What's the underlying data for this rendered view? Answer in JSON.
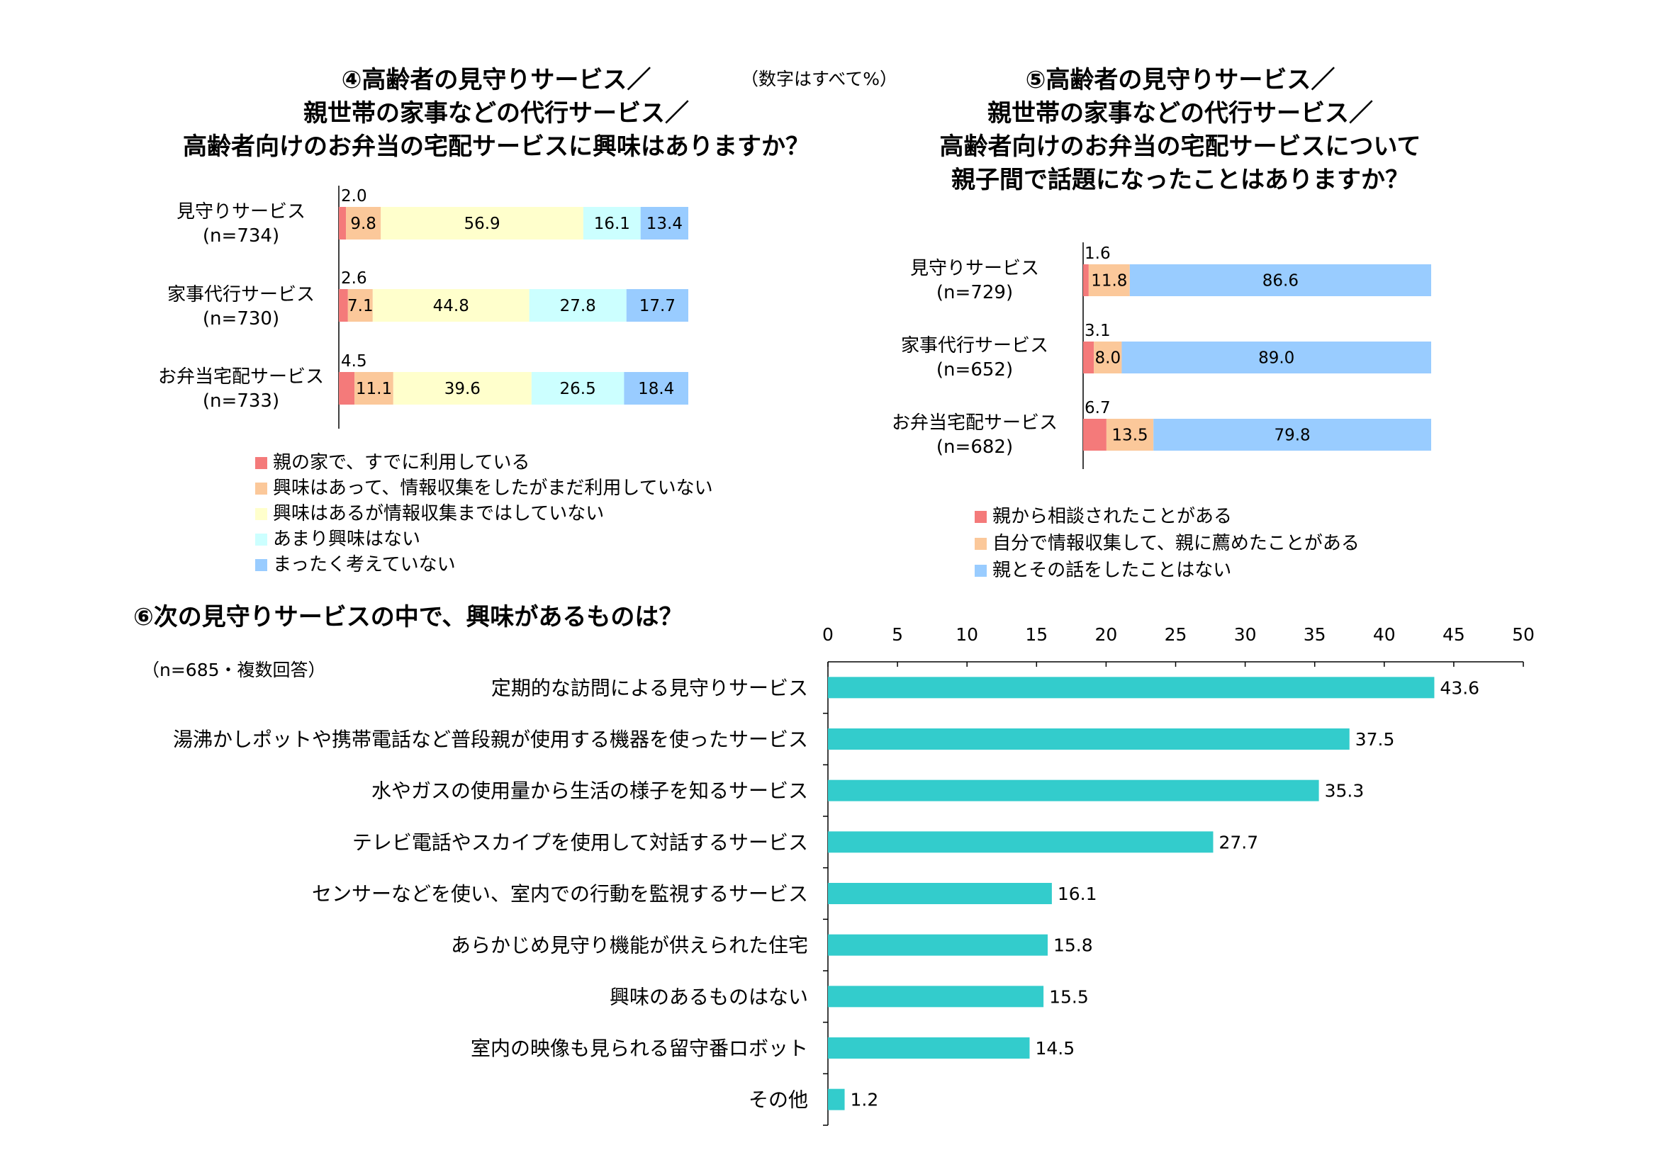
{
  "chart4": {
    "title_lines": [
      "④高齢者の見守りサービス／",
      "親世帯の家事などの代行サービス／",
      "高齢者向けのお弁当の宅配サービスに興味はありますか？"
    ],
    "unit_note": "（数字はすべて%）",
    "rows": [
      {
        "label": "見守りサービス",
        "n": "(n=734)"
      },
      {
        "label": "家事代行サービス",
        "n": "(n=730)"
      },
      {
        "label": "お弁当宅配サービス",
        "n": "(n=733)"
      }
    ],
    "legend": [
      "親の家で、すでに利用している",
      "興味はあって、情報収集をしたがまだ利用していない",
      "興味はあるが情報収集まではしていない",
      "あまり興味はない",
      "まったく考えていない"
    ]
  },
  "chart5": {
    "title_lines": [
      "⑤高齢者の見守りサービス／",
      "親世帯の家事などの代行サービス／",
      "高齢者向けのお弁当の宅配サービスについて",
      "親子間で話題になったことはありますか？"
    ],
    "rows": [
      {
        "label": "見守りサービス",
        "n": "(n=729)"
      },
      {
        "label": "家事代行サービス",
        "n": "(n=652)"
      },
      {
        "label": "お弁当宅配サービス",
        "n": "(n=682)"
      }
    ],
    "legend": [
      "親から相談されたことがある",
      "自分で情報収集して、親に薦めたことがある",
      "親とその話をしたことはない"
    ]
  },
  "chart6": {
    "title": "⑥次の見守りサービスの中で、興味があるものは？",
    "note": "（n=685・複数回答）"
  },
  "colors": {
    "c1": "#f47a7a",
    "c2": "#fbc89a",
    "c3": "#ffffcc",
    "c4": "#ccffff",
    "c5": "#99ccff",
    "teal": "#33cccc"
  },
  "chart_data": [
    {
      "type": "bar",
      "orientation": "horizontal-stacked",
      "categories": [
        "見守りサービス",
        "家事代行サービス",
        "お弁当宅配サービス"
      ],
      "series": [
        {
          "name": "親の家で、すでに利用している",
          "values": [
            2.0,
            2.6,
            4.5
          ]
        },
        {
          "name": "興味はあって、情報収集をしたがまだ利用していない",
          "values": [
            9.8,
            7.1,
            11.1
          ]
        },
        {
          "name": "興味はあるが情報収集まではしていない",
          "values": [
            56.9,
            44.8,
            39.6
          ]
        },
        {
          "name": "あまり興味はない",
          "values": [
            16.1,
            27.8,
            26.5
          ]
        },
        {
          "name": "まったく考えていない",
          "values": [
            13.4,
            17.7,
            18.4
          ]
        }
      ],
      "legend": "bottom"
    },
    {
      "type": "bar",
      "orientation": "horizontal-stacked",
      "categories": [
        "見守りサービス",
        "家事代行サービス",
        "お弁当宅配サービス"
      ],
      "series": [
        {
          "name": "親から相談されたことがある",
          "values": [
            1.6,
            3.1,
            6.7
          ]
        },
        {
          "name": "自分で情報収集して、親に薦めたことがある",
          "values": [
            11.8,
            8.0,
            13.5
          ]
        },
        {
          "name": "親とその話をしたことはない",
          "values": [
            86.6,
            89.0,
            79.8
          ]
        }
      ],
      "legend": "bottom"
    },
    {
      "type": "bar",
      "orientation": "horizontal",
      "categories": [
        "定期的な訪問による見守りサービス",
        "湯沸かしポットや携帯電話など普段親が使用する機器を使ったサービス",
        "水やガスの使用量から生活の様子を知るサービス",
        "テレビ電話やスカイプを使用して対話するサービス",
        "センサーなどを使い、室内での行動を監視するサービス",
        "あらかじめ見守り機能が供えられた住宅",
        "興味のあるものはない",
        "室内の映像も見られる留守番ロボット",
        "その他"
      ],
      "values": [
        43.6,
        37.5,
        35.3,
        27.7,
        16.1,
        15.8,
        15.5,
        14.5,
        1.2
      ],
      "xlim": [
        0,
        50
      ],
      "xticks": [
        "0",
        "5",
        "10",
        "15",
        "20",
        "25",
        "30",
        "35",
        "40",
        "45",
        "50"
      ],
      "grid": false
    }
  ]
}
